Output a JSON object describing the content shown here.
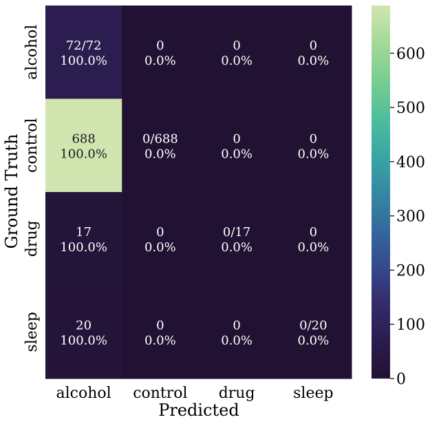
{
  "chart_data": {
    "type": "heatmap",
    "title": "",
    "xlabel": "Predicted",
    "ylabel": "Ground Truth",
    "x_categories": [
      "alcohol",
      "control",
      "drug",
      "sleep"
    ],
    "y_categories": [
      "alcohol",
      "control",
      "drug",
      "sleep"
    ],
    "values": [
      [
        72,
        0,
        0,
        0
      ],
      [
        688,
        0,
        0,
        0
      ],
      [
        17,
        0,
        0,
        0
      ],
      [
        20,
        0,
        0,
        0
      ]
    ],
    "annotations": [
      [
        {
          "top": "72/72",
          "bottom": "100.0%"
        },
        {
          "top": "0",
          "bottom": "0.0%"
        },
        {
          "top": "0",
          "bottom": "0.0%"
        },
        {
          "top": "0",
          "bottom": "0.0%"
        }
      ],
      [
        {
          "top": "688",
          "bottom": "100.0%"
        },
        {
          "top": "0/688",
          "bottom": "0.0%"
        },
        {
          "top": "0",
          "bottom": "0.0%"
        },
        {
          "top": "0",
          "bottom": "0.0%"
        }
      ],
      [
        {
          "top": "17",
          "bottom": "100.0%"
        },
        {
          "top": "0",
          "bottom": "0.0%"
        },
        {
          "top": "0/17",
          "bottom": "0.0%"
        },
        {
          "top": "0",
          "bottom": "0.0%"
        }
      ],
      [
        {
          "top": "20",
          "bottom": "100.0%"
        },
        {
          "top": "0",
          "bottom": "0.0%"
        },
        {
          "top": "0",
          "bottom": "0.0%"
        },
        {
          "top": "0/20",
          "bottom": "0.0%"
        }
      ]
    ],
    "colormap": "mako_r",
    "colorbar": {
      "range": [
        0,
        688
      ],
      "ticks": [
        0,
        100,
        200,
        300,
        400,
        500,
        600
      ]
    }
  }
}
